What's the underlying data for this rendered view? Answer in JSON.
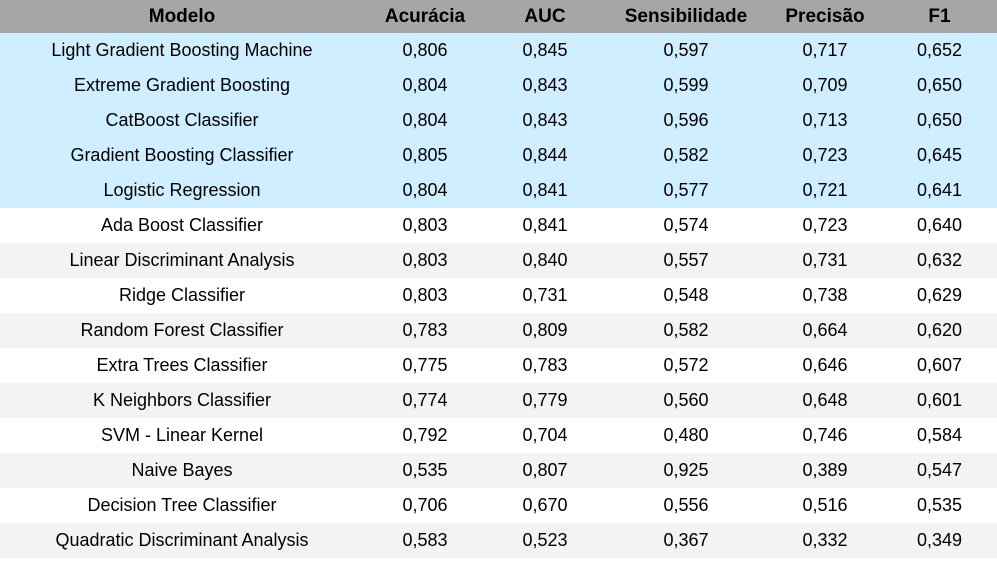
{
  "chart_data": {
    "type": "table",
    "columns": [
      "Modelo",
      "Acurácia",
      "AUC",
      "Sensibilidade",
      "Precisão",
      "F1"
    ],
    "rows": [
      [
        "Light Gradient Boosting Machine",
        "0,806",
        "0,845",
        "0,597",
        "0,717",
        "0,652"
      ],
      [
        "Extreme Gradient Boosting",
        "0,804",
        "0,843",
        "0,599",
        "0,709",
        "0,650"
      ],
      [
        "CatBoost Classifier",
        "0,804",
        "0,843",
        "0,596",
        "0,713",
        "0,650"
      ],
      [
        "Gradient Boosting Classifier",
        "0,805",
        "0,844",
        "0,582",
        "0,723",
        "0,645"
      ],
      [
        "Logistic Regression",
        "0,804",
        "0,841",
        "0,577",
        "0,721",
        "0,641"
      ],
      [
        "Ada Boost Classifier",
        "0,803",
        "0,841",
        "0,574",
        "0,723",
        "0,640"
      ],
      [
        "Linear Discriminant Analysis",
        "0,803",
        "0,840",
        "0,557",
        "0,731",
        "0,632"
      ],
      [
        "Ridge Classifier",
        "0,803",
        "0,731",
        "0,548",
        "0,738",
        "0,629"
      ],
      [
        "Random Forest Classifier",
        "0,783",
        "0,809",
        "0,582",
        "0,664",
        "0,620"
      ],
      [
        "Extra Trees Classifier",
        "0,775",
        "0,783",
        "0,572",
        "0,646",
        "0,607"
      ],
      [
        "K Neighbors Classifier",
        "0,774",
        "0,779",
        "0,560",
        "0,648",
        "0,601"
      ],
      [
        "SVM - Linear Kernel",
        "0,792",
        "0,704",
        "0,480",
        "0,746",
        "0,584"
      ],
      [
        "Naive Bayes",
        "0,535",
        "0,807",
        "0,925",
        "0,389",
        "0,547"
      ],
      [
        "Decision Tree Classifier",
        "0,706",
        "0,670",
        "0,556",
        "0,516",
        "0,535"
      ],
      [
        "Quadratic Discriminant Analysis",
        "0,583",
        "0,523",
        "0,367",
        "0,332",
        "0,349"
      ]
    ],
    "highlighted_rows": 5,
    "colors": {
      "header_bg": "#a6a6a6",
      "highlight_bg": "#cfeeff",
      "row_bg": "#ffffff",
      "alt_row_bg": "#f3f3f3"
    }
  }
}
